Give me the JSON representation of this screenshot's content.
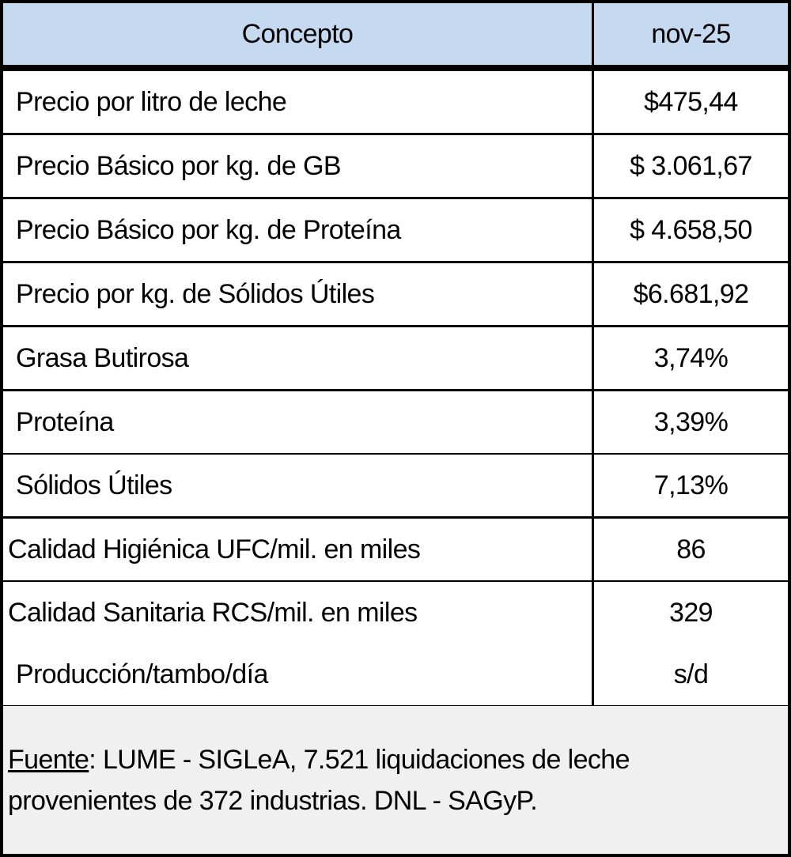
{
  "header": {
    "concept": "Concepto",
    "period": "nov-25"
  },
  "colors": {
    "header_bg": "#c5d9f1",
    "footer_bg": "#f0f0f0",
    "border": "#000000"
  },
  "rows": [
    {
      "concept": "Precio por litro de leche",
      "value": "$475,44"
    },
    {
      "concept": "Precio Básico por kg. de GB",
      "value": "$ 3.061,67"
    },
    {
      "concept": "Precio Básico por kg. de Proteína",
      "value": "$ 4.658,50"
    },
    {
      "concept": "Precio por kg. de Sólidos Útiles",
      "value": "$6.681,92"
    },
    {
      "concept": "Grasa Butirosa",
      "value": "3,74%"
    },
    {
      "concept": "Proteína",
      "value": "3,39%"
    },
    {
      "concept": "Sólidos Útiles",
      "value": "7,13%"
    },
    {
      "concept": "Calidad Higiénica UFC/mil. en miles",
      "value": "86"
    },
    {
      "concept": "Calidad Sanitaria RCS/mil. en miles",
      "value": "329"
    },
    {
      "concept": "Producción/tambo/día",
      "value": "s/d"
    }
  ],
  "footer": {
    "source_label": "Fuente",
    "source_text": ":  LUME - SIGLeA, 7.521 liquidaciones de leche provenientes de 372 industrias. DNL - SAGyP."
  }
}
